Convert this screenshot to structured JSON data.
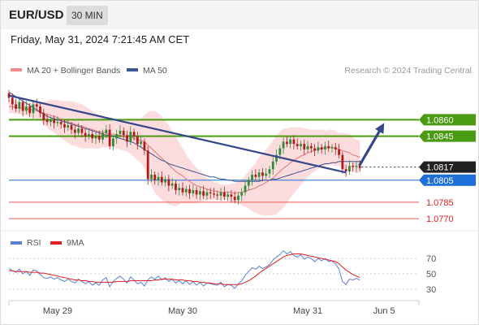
{
  "header": {
    "symbol": "EUR/USD",
    "timeframe": "30 MIN",
    "datetime": "Friday, May 31, 2024 7:21:45 AM CET"
  },
  "legend": {
    "items": [
      {
        "label": "MA 20 + Bollinger Bands",
        "color": "#f28a8a"
      },
      {
        "label": "MA 50",
        "color": "#3b5790"
      }
    ],
    "credit": "Research © 2024 Trading Central"
  },
  "rsi_legend": {
    "items": [
      {
        "label": "RSI",
        "color": "#5b7fd6"
      },
      {
        "label": "9MA",
        "color": "#e02020"
      }
    ]
  },
  "colors": {
    "up": "#2e8b3a",
    "down": "#b01a1a",
    "resistance": "#4a9a12",
    "support_blue": "#1f6fd8",
    "support_red": "#e85a5a",
    "current": "#222222",
    "trend": "#34478a",
    "band_fill": "#fbd6d6",
    "ma20": "#e07777",
    "ma50": "#3b5790",
    "rsi": "#5b7fd6",
    "rsi_ma": "#e02020"
  },
  "chart_data": [
    {
      "type": "candlestick",
      "ylim": [
        1.0762,
        1.0895
      ],
      "xlim": [
        0,
        118
      ],
      "x_tick_labels": [
        {
          "x": 14,
          "label": "May 29"
        },
        {
          "x": 50,
          "label": "May 30"
        },
        {
          "x": 86,
          "label": "May 31"
        },
        {
          "x": 108,
          "label": "Jun 5"
        }
      ],
      "levels": [
        {
          "value": 1.086,
          "label": "1.0860",
          "kind": "resistance"
        },
        {
          "value": 1.0845,
          "label": "1.0845",
          "kind": "resistance"
        },
        {
          "value": 1.0817,
          "label": "1.0817",
          "kind": "current"
        },
        {
          "value": 1.0805,
          "label": "1.0805",
          "kind": "support_blue"
        },
        {
          "value": 1.0785,
          "label": "1.0785",
          "kind": "support_red"
        },
        {
          "value": 1.077,
          "label": "1.0770",
          "kind": "support_red"
        }
      ],
      "closes": [
        1.088,
        1.0874,
        1.087,
        1.0876,
        1.0868,
        1.0872,
        1.0866,
        1.0874,
        1.0872,
        1.0866,
        1.086,
        1.0858,
        1.086,
        1.0857,
        1.0858,
        1.0856,
        1.0853,
        1.0855,
        1.0851,
        1.0848,
        1.0852,
        1.0848,
        1.0845,
        1.0847,
        1.0843,
        1.0845,
        1.0842,
        1.0848,
        1.0851,
        1.0836,
        1.0843,
        1.0847,
        1.085,
        1.0846,
        1.084,
        1.0849,
        1.0845,
        1.0838,
        1.084,
        1.0832,
        1.0806,
        1.081,
        1.0805,
        1.0808,
        1.0803,
        1.0806,
        1.08,
        1.0802,
        1.0796,
        1.0798,
        1.0794,
        1.0797,
        1.0793,
        1.0796,
        1.0792,
        1.0795,
        1.0791,
        1.0794,
        1.0793,
        1.0792,
        1.0791,
        1.0794,
        1.079,
        1.0792,
        1.079,
        1.0787,
        1.0791,
        1.0794,
        1.08,
        1.0805,
        1.081,
        1.0808,
        1.0812,
        1.0809,
        1.0811,
        1.0815,
        1.0822,
        1.0828,
        1.0834,
        1.084,
        1.0838,
        1.0842,
        1.0838,
        1.0836,
        1.0838,
        1.0833,
        1.0836,
        1.0834,
        1.0832,
        1.0835,
        1.0833,
        1.0836,
        1.0834,
        1.0835,
        1.0833,
        1.0828,
        1.0815,
        1.0813,
        1.0818,
        1.0817,
        1.0818,
        1.0816
      ],
      "ma20": [
        1.0872,
        1.0872,
        1.0871,
        1.0871,
        1.087,
        1.087,
        1.0869,
        1.0869,
        1.0868,
        1.0867,
        1.0866,
        1.0865,
        1.0864,
        1.0863,
        1.0862,
        1.086,
        1.0859,
        1.0858,
        1.0857,
        1.0856,
        1.0855,
        1.0854,
        1.0853,
        1.0852,
        1.0851,
        1.085,
        1.0849,
        1.0849,
        1.0848,
        1.0847,
        1.0847,
        1.0846,
        1.0846,
        1.0845,
        1.0845,
        1.0844,
        1.0843,
        1.0842,
        1.0841,
        1.084,
        1.0837,
        1.0834,
        1.0831,
        1.0828,
        1.0825,
        1.0822,
        1.0819,
        1.0816,
        1.0813,
        1.0811,
        1.0809,
        1.0806,
        1.0804,
        1.0802,
        1.08,
        1.0799,
        1.0798,
        1.0797,
        1.0796,
        1.0795,
        1.0795,
        1.0794,
        1.0794,
        1.0794,
        1.0794,
        1.0793,
        1.0794,
        1.0794,
        1.0795,
        1.0796,
        1.0797,
        1.0798,
        1.08,
        1.0801,
        1.0803,
        1.0805,
        1.0807,
        1.081,
        1.0813,
        1.0816,
        1.0818,
        1.0821,
        1.0823,
        1.0825,
        1.0827,
        1.0828,
        1.083,
        1.0831,
        1.0832,
        1.0833,
        1.0834,
        1.0834,
        1.0835,
        1.0835,
        1.0834,
        1.0833,
        1.0832,
        1.0831,
        1.083,
        1.0828,
        1.0827,
        1.0826
      ],
      "band_width": [
        0.0006,
        0.0006,
        0.0006,
        0.0006,
        0.0006,
        0.0006,
        0.0006,
        0.0007,
        0.0007,
        0.0008,
        0.001,
        0.0012,
        0.0014,
        0.0015,
        0.0016,
        0.0017,
        0.0018,
        0.0019,
        0.002,
        0.002,
        0.002,
        0.002,
        0.0019,
        0.0018,
        0.0017,
        0.0016,
        0.0015,
        0.0014,
        0.0013,
        0.0012,
        0.0012,
        0.0012,
        0.0013,
        0.0013,
        0.0014,
        0.0015,
        0.0017,
        0.0019,
        0.002,
        0.0024,
        0.003,
        0.0034,
        0.0037,
        0.0038,
        0.0038,
        0.0037,
        0.0036,
        0.0034,
        0.0032,
        0.0028,
        0.0025,
        0.0022,
        0.002,
        0.0018,
        0.0016,
        0.0014,
        0.0012,
        0.001,
        0.0009,
        0.0008,
        0.0008,
        0.0007,
        0.0007,
        0.0007,
        0.0008,
        0.0009,
        0.001,
        0.0012,
        0.0014,
        0.0017,
        0.002,
        0.0023,
        0.0026,
        0.0028,
        0.003,
        0.0032,
        0.0034,
        0.0036,
        0.0036,
        0.0036,
        0.0034,
        0.0032,
        0.003,
        0.0028,
        0.0026,
        0.0024,
        0.0022,
        0.002,
        0.0019,
        0.0018,
        0.0017,
        0.0016,
        0.0016,
        0.0016,
        0.0016,
        0.0015,
        0.0016,
        0.0017,
        0.0017,
        0.0016,
        0.0015,
        0.0015
      ],
      "ma50": [
        1.0885,
        1.0883,
        1.0881,
        1.0879,
        1.0877,
        1.0875,
        1.0873,
        1.0871,
        1.0869,
        1.0867,
        1.0865,
        1.0863,
        1.0862,
        1.0861,
        1.086,
        1.0859,
        1.0858,
        1.0857,
        1.0856,
        1.0855,
        1.0854,
        1.0853,
        1.0852,
        1.0851,
        1.085,
        1.0849,
        1.0848,
        1.0847,
        1.0846,
        1.0846,
        1.0845,
        1.0844,
        1.0843,
        1.0842,
        1.0841,
        1.084,
        1.0839,
        1.0837,
        1.0835,
        1.0833,
        1.0831,
        1.0829,
        1.0827,
        1.0825,
        1.0823,
        1.0822,
        1.082,
        1.0819,
        1.0818,
        1.0817,
        1.0816,
        1.0815,
        1.0814,
        1.0813,
        1.0812,
        1.0811,
        1.081,
        1.0809,
        1.0808,
        1.0808,
        1.0807,
        1.0806,
        1.0806,
        1.0805,
        1.0805,
        1.0804,
        1.0804,
        1.0804,
        1.0804,
        1.0804,
        1.0804,
        1.0804,
        1.0804,
        1.0805,
        1.0805,
        1.0805,
        1.0806,
        1.0806,
        1.0807,
        1.0808,
        1.0809,
        1.081,
        1.0811,
        1.0812,
        1.0813,
        1.0814,
        1.0815,
        1.0816,
        1.0817,
        1.0818,
        1.0819,
        1.082,
        1.082,
        1.0821,
        1.0821,
        1.0822,
        1.0822,
        1.0822,
        1.0822,
        1.0822,
        1.0822,
        1.0822
      ],
      "trendline": {
        "from": {
          "x": 0,
          "y": 1.0882
        },
        "to": {
          "x": 97,
          "y": 1.0812
        }
      },
      "forecast_arrow": {
        "from": {
          "x": 101,
          "y": 1.0819
        },
        "to": {
          "x": 108,
          "y": 1.0857
        }
      }
    },
    {
      "type": "line",
      "ylim": [
        15,
        85
      ],
      "y_tick_labels": [
        {
          "value": 70,
          "label": "70"
        },
        {
          "value": 50,
          "label": "50"
        },
        {
          "value": 30,
          "label": "30"
        }
      ],
      "series": [
        {
          "name": "RSI",
          "values": [
            57,
            54,
            52,
            56,
            50,
            53,
            48,
            55,
            54,
            49,
            45,
            44,
            46,
            43,
            45,
            42,
            40,
            43,
            40,
            38,
            43,
            40,
            37,
            40,
            35,
            38,
            35,
            42,
            45,
            33,
            40,
            44,
            47,
            43,
            38,
            46,
            42,
            37,
            39,
            34,
            42,
            46,
            43,
            47,
            42,
            45,
            40,
            43,
            38,
            41,
            37,
            41,
            36,
            40,
            35,
            39,
            34,
            38,
            37,
            36,
            35,
            39,
            33,
            36,
            35,
            31,
            37,
            41,
            48,
            53,
            58,
            56,
            60,
            57,
            59,
            62,
            68,
            72,
            75,
            80,
            76,
            79,
            74,
            72,
            75,
            69,
            72,
            70,
            66,
            70,
            67,
            70,
            66,
            67,
            63,
            56,
            40,
            36,
            43,
            42,
            44,
            42
          ]
        },
        {
          "name": "9MA",
          "values": [
            54,
            54,
            53,
            53,
            53,
            53,
            52,
            52,
            52,
            51,
            51,
            50,
            49,
            48,
            47,
            46,
            45,
            44,
            43,
            42,
            42,
            41,
            41,
            40,
            40,
            39,
            39,
            39,
            39,
            39,
            39,
            40,
            40,
            40,
            40,
            41,
            41,
            41,
            41,
            41,
            41,
            41,
            42,
            42,
            43,
            43,
            43,
            43,
            42,
            42,
            42,
            41,
            41,
            40,
            40,
            39,
            39,
            38,
            38,
            37,
            37,
            37,
            36,
            36,
            36,
            36,
            36,
            37,
            39,
            41,
            44,
            47,
            51,
            54,
            57,
            60,
            63,
            66,
            69,
            72,
            74,
            75,
            76,
            76,
            76,
            75,
            74,
            73,
            72,
            71,
            70,
            69,
            68,
            67,
            66,
            63,
            59,
            55,
            52,
            49,
            47,
            45
          ]
        }
      ]
    }
  ]
}
